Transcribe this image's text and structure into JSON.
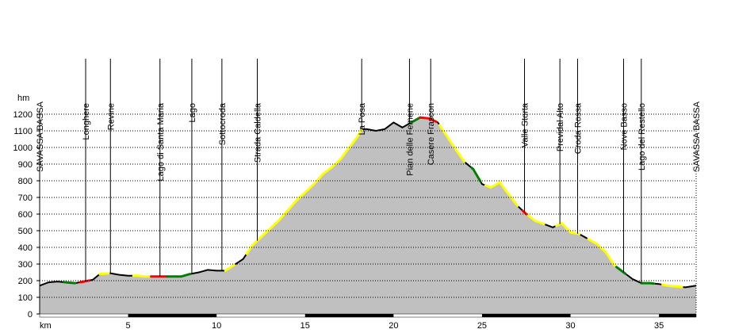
{
  "chart_data": {
    "type": "area",
    "title": "",
    "xlabel": "km",
    "ylabel": "hm",
    "xlim": [
      0,
      37.1
    ],
    "ylim": [
      0,
      1200
    ],
    "x_ticks": [
      5,
      10,
      15,
      20,
      25,
      30,
      35
    ],
    "y_ticks": [
      0,
      100,
      200,
      300,
      400,
      500,
      600,
      700,
      800,
      900,
      1000,
      1100,
      1200
    ],
    "grid": true,
    "fill_color": "#c0c0c0",
    "waypoints": [
      {
        "label": "SAVASSA BASSA",
        "km": 0.0
      },
      {
        "label": "Longhere",
        "km": 2.6
      },
      {
        "label": "Revine",
        "km": 4.0
      },
      {
        "label": "Lago di Santa Maria",
        "km": 6.8
      },
      {
        "label": "Lago",
        "km": 8.6
      },
      {
        "label": "Sottocroda",
        "km": 10.3
      },
      {
        "label": "Strada Caldella",
        "km": 12.3
      },
      {
        "label": "La Posa",
        "km": 18.2
      },
      {
        "label": "Pian delle Femene",
        "km": 20.9
      },
      {
        "label": "Casere Frascon",
        "km": 22.1
      },
      {
        "label": "Valle Storta",
        "km": 27.4
      },
      {
        "label": "Previdal Alto",
        "km": 29.4
      },
      {
        "label": "Croda Rossa",
        "km": 30.4
      },
      {
        "label": "Nove Basso",
        "km": 33.0
      },
      {
        "label": "Lago del Restello",
        "km": 34.0
      },
      {
        "label": "SAVASSA BASSA",
        "km": 37.1
      }
    ],
    "profile": {
      "x": [
        0,
        0.5,
        1,
        1.5,
        2,
        2.5,
        3,
        3.4,
        4,
        4.5,
        5,
        5.5,
        6,
        6.5,
        7,
        7.5,
        8,
        8.5,
        9,
        9.5,
        10,
        10.5,
        11,
        11.5,
        12,
        12.5,
        13,
        13.5,
        14,
        14.5,
        15,
        15.5,
        16,
        16.5,
        17,
        17.5,
        18,
        18.2,
        18.5,
        19,
        19.5,
        20,
        20.5,
        21,
        21.5,
        22,
        22.5,
        23,
        23.5,
        24,
        24.5,
        25,
        25.5,
        26,
        26.5,
        27,
        27.5,
        28,
        28.5,
        29,
        29.5,
        30,
        30.5,
        31,
        31.5,
        32,
        32.5,
        33,
        33.5,
        34,
        34.5,
        35,
        35.5,
        36,
        36.5,
        37.1
      ],
      "y": [
        170,
        190,
        195,
        190,
        185,
        195,
        205,
        240,
        245,
        235,
        230,
        230,
        225,
        225,
        225,
        225,
        225,
        240,
        250,
        265,
        260,
        260,
        295,
        330,
        410,
        460,
        510,
        560,
        620,
        680,
        730,
        780,
        840,
        880,
        930,
        1000,
        1070,
        1110,
        1110,
        1100,
        1110,
        1150,
        1120,
        1150,
        1180,
        1175,
        1150,
        1070,
        990,
        915,
        870,
        780,
        760,
        790,
        720,
        650,
        600,
        560,
        540,
        520,
        545,
        490,
        480,
        450,
        420,
        370,
        290,
        250,
        210,
        185,
        185,
        180,
        170,
        165,
        160,
        170
      ]
    },
    "colored_segments": [
      {
        "color": "#ffff00",
        "from": 3.4,
        "to": 3.9
      },
      {
        "color": "#ffff00",
        "from": 5.3,
        "to": 6.2
      },
      {
        "color": "#ff0000",
        "from": 6.3,
        "to": 7.2
      },
      {
        "color": "#008000",
        "from": 7.2,
        "to": 8.5
      },
      {
        "color": "#ffff00",
        "from": 10.5,
        "to": 11.0
      },
      {
        "color": "#ffff00",
        "from": 11.7,
        "to": 18.2
      },
      {
        "color": "#008000",
        "from": 21.0,
        "to": 21.5
      },
      {
        "color": "#ff0000",
        "from": 21.5,
        "to": 22.4
      },
      {
        "color": "#ffff00",
        "from": 22.6,
        "to": 24.0
      },
      {
        "color": "#008000",
        "from": 24.4,
        "to": 24.9
      },
      {
        "color": "#ffff00",
        "from": 25.2,
        "to": 27.0
      },
      {
        "color": "#ff0000",
        "from": 27.3,
        "to": 27.6
      },
      {
        "color": "#ffff00",
        "from": 27.6,
        "to": 28.5
      },
      {
        "color": "#ffff00",
        "from": 29.2,
        "to": 30.5
      },
      {
        "color": "#ffff00",
        "from": 31.0,
        "to": 32.5
      },
      {
        "color": "#008000",
        "from": 32.6,
        "to": 33.1
      },
      {
        "color": "#008000",
        "from": 34.0,
        "to": 34.7
      },
      {
        "color": "#ffff00",
        "from": 35.2,
        "to": 36.3
      },
      {
        "color": "#008000",
        "from": 1.4,
        "to": 2.0
      },
      {
        "color": "#ff0000",
        "from": 2.3,
        "to": 2.8
      }
    ],
    "distance_bar_segments": [
      {
        "from": 5,
        "to": 10
      },
      {
        "from": 15,
        "to": 20
      },
      {
        "from": 25,
        "to": 30
      },
      {
        "from": 35,
        "to": 37.1
      }
    ]
  }
}
